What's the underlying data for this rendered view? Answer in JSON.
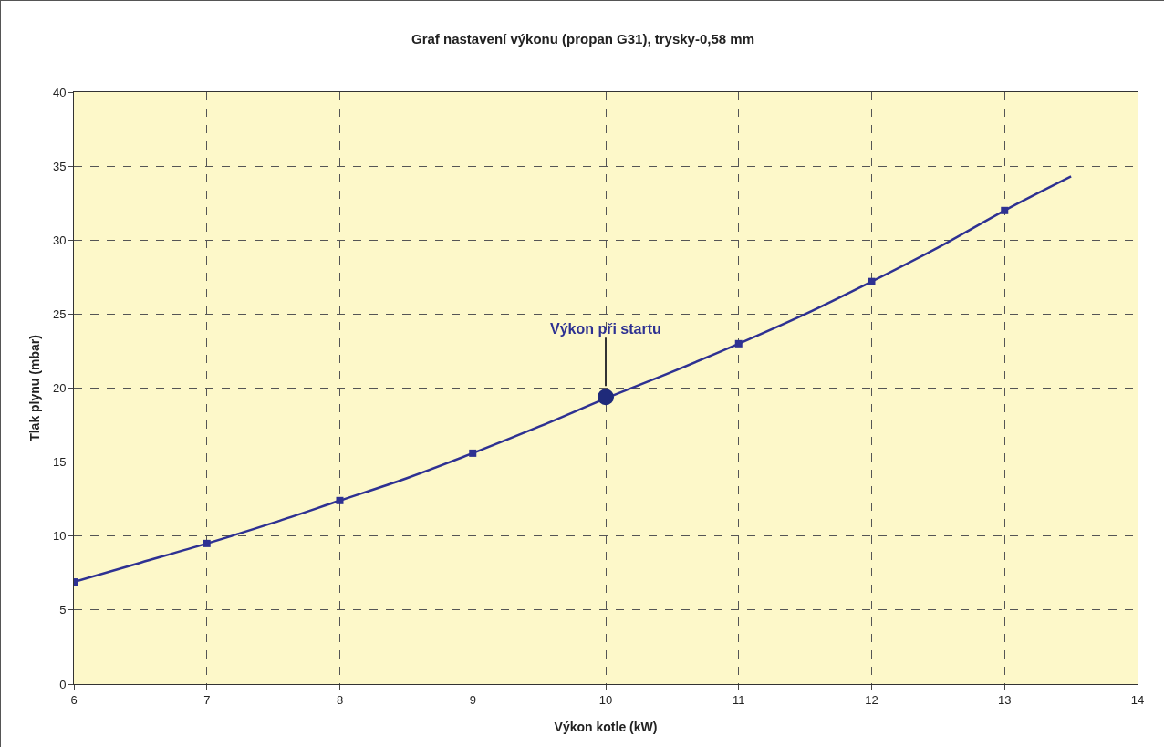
{
  "chart_data": {
    "type": "line",
    "title": "Graf nastavení výkonu (propan G31), trysky-0,58 mm",
    "xlabel": "Výkon kotle (kW)",
    "ylabel": "Tlak plynu (mbar)",
    "series": [
      {
        "color": "#2e3192",
        "marker": "none",
        "x": [
          6,
          6.5,
          7,
          7.5,
          8,
          8.5,
          9,
          9.5,
          10,
          10.5,
          11,
          11.5,
          12,
          12.5,
          13,
          13.5
        ],
        "values": [
          6.9,
          8.2,
          9.5,
          10.9,
          12.4,
          13.9,
          15.6,
          17.4,
          19.3,
          21.1,
          23.0,
          25.0,
          27.2,
          29.5,
          32.0,
          34.3
        ]
      },
      {
        "type": "scatter",
        "color": "#2e3192",
        "marker": "square",
        "x": [
          6,
          7,
          8,
          9,
          11,
          12,
          13
        ],
        "values": [
          6.9,
          9.5,
          12.4,
          15.6,
          23.0,
          27.2,
          32.0
        ]
      },
      {
        "type": "scatter",
        "color": "#1f2a7a",
        "marker": "circle",
        "x": [
          10
        ],
        "values": [
          19.4
        ]
      }
    ],
    "annotations": [
      {
        "text": "Výkon při startu",
        "x": 10,
        "y": 19.4
      }
    ],
    "xlim": [
      6,
      14
    ],
    "xticks": [
      6,
      7,
      8,
      9,
      10,
      11,
      12,
      13,
      14
    ],
    "ylim": [
      0,
      40
    ],
    "yticks": [
      0,
      5,
      10,
      15,
      20,
      25,
      30,
      35,
      40
    ],
    "grid": true
  }
}
